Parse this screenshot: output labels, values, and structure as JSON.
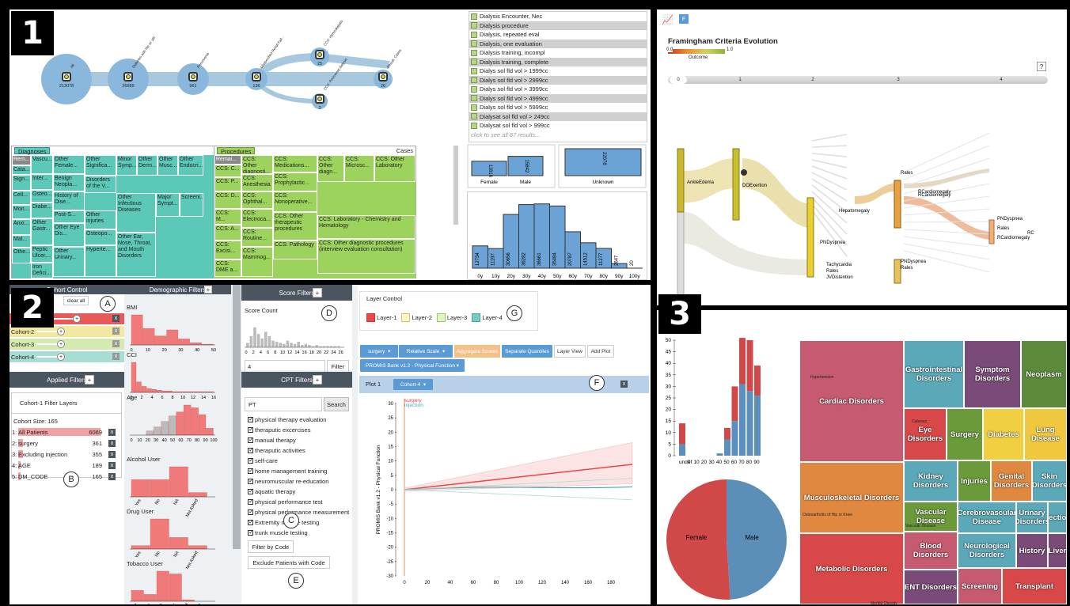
{
  "panel_numbers": [
    "1",
    "2",
    "3"
  ],
  "p1": {
    "flow_nodes": [
      {
        "count": "213078",
        "label": "All"
      },
      {
        "count": "26689",
        "label": "Diabetes with hte w/ oth"
      },
      {
        "count": "961",
        "label": "Pneumonia"
      },
      {
        "count": "136",
        "label": "Unspecified Renal Fail..."
      },
      {
        "count": "25",
        "label": "CCS: Hemodialysis"
      },
      {
        "count": "2",
        "label": "CCS: Peritoneal dialysis"
      },
      {
        "count": "26",
        "label": "Result: Cases"
      }
    ],
    "list_items": [
      "Dialysis Encounter, Nec",
      "Dialysis procedure",
      "Dialysis, repeated eval",
      "Dialysis, one evaluation",
      "Dialysis training, incompl",
      "Dialysis training, complete",
      "Dialys sol fld vol > 1999cc",
      "Dialys sol fld vol > 2999cc",
      "Dialys sol fld vol > 3999cc",
      "Dialys sol fld vol > 4999cc",
      "Dialys sol fld vol > 5999cc",
      "Dialysat sol fld vol > 249cc",
      "Dialysat sol fld vol > 999cc"
    ],
    "list_more": "click to see all 87 results...",
    "diag_tab": "Diagnoses",
    "cases": "Cases",
    "proc_tab": "Procedures",
    "diag_cells": [
      "Rem...",
      "Vascu...",
      "Other Female...",
      "Other Significa...",
      "Minor Symp...",
      "Other Derm...",
      "Other Musc...",
      "Other Endocri...",
      "Cata...",
      "Inter...",
      "Sign...",
      "Osteo...",
      "Benign Neopla...",
      "Disorders of the V...",
      "Cell...",
      "History of Dise...",
      "Mon...",
      "Diabe...",
      "Post-S...",
      "Other Infectious Diseases",
      "Major Sympt...",
      "Screeni...",
      "Anxi...",
      "Other injuries",
      "Osteopo...",
      "Mal...",
      "Other Gastr...",
      "Other Eye Dis...",
      "Hyperte...",
      "Other Ear, Nose, Throat, and Mouth Disorders",
      "Othe...",
      "Peptic Ulcer,...",
      "Other Urinary...",
      "Iron Defici..."
    ],
    "proc_cells": [
      "Remai...",
      "CCS: Other diagnosti...",
      "CCS: Medications...",
      "CCS: Other diagn...",
      "CCS: Microsc...",
      "CCS: Other Laboratory",
      "CCS: C...",
      "CCS: Anesthesia",
      "CCS: Prophylactic...",
      "CCS: P...",
      "CCS: Ophthal...",
      "CCS: Nonoperative...",
      "CCS: D...",
      "CCS: M...",
      "CCS: Electroca...",
      "CCS: Other therapeutic procedures",
      "CCS: Laboratory - Chemistry and Hematology",
      "CCS: A...",
      "CCS: Routine...",
      "CCS: Excisi...",
      "CCS: Pathology",
      "CCS: Other diagnostic procedures (interview evaluation consultation)",
      "CCS: DME a...",
      "CCS: Mammog..."
    ],
    "gender_bars": {
      "values": [
        11816,
        15842,
        22078
      ],
      "labels": [
        "Female",
        "Male",
        "Unknown"
      ]
    },
    "age_hist": {
      "categories": [
        "0y",
        "10y",
        "20y",
        "30y",
        "40y",
        "50y",
        "60y",
        "70y",
        "80y",
        "90y",
        "100y"
      ],
      "values": [
        12734,
        11197,
        30656,
        36282,
        36661,
        35484,
        20787,
        14512,
        11277,
        2647,
        20
      ]
    }
  },
  "p2": {
    "cohort_control": "Cohort Control",
    "clear_all": "clear all",
    "cohorts": [
      "Cohort-1",
      "Cohort-2",
      "Cohort-3",
      "Cohort-4"
    ],
    "cohort_colors": [
      "#e85a5a",
      "#f3e8a0",
      "#d4eab0",
      "#a8ddd6"
    ],
    "applied_filters": "Applied Filters",
    "filter_layers": "Cohort-1 Filter Layers",
    "cohort_size": "Cohort Size: 165",
    "layers": [
      {
        "n": "1:",
        "name": "All Patients",
        "count": "6069"
      },
      {
        "n": "2:",
        "name": "surgery",
        "count": "361"
      },
      {
        "n": "3:",
        "name": "Excluding injection",
        "count": "355"
      },
      {
        "n": "4:",
        "name": "AGE",
        "count": "189"
      },
      {
        "n": "5:",
        "name": "DM_CODE",
        "count": "165"
      }
    ],
    "demo_filters": "Demographic Filters",
    "bmi": {
      "title": "BMI",
      "ticks": [
        "0",
        "10",
        "20",
        "30",
        "40",
        "50"
      ],
      "values": [
        40,
        22,
        12,
        20,
        8,
        3,
        1
      ]
    },
    "cci": {
      "title": "CCI",
      "ticks": [
        "0",
        "2",
        "4",
        "6",
        "8",
        "10",
        "12",
        "14",
        "16"
      ],
      "values": [
        40,
        14,
        8,
        5,
        4,
        3,
        2,
        2,
        1,
        1,
        1,
        1,
        1,
        1,
        1,
        1
      ]
    },
    "age": {
      "title": "Age",
      "ticks": [
        "0",
        "10",
        "20",
        "30",
        "40",
        "50",
        "60",
        "70",
        "80",
        "90",
        "100"
      ],
      "values": [
        0,
        0,
        3,
        6,
        10,
        14,
        17,
        22,
        20,
        15,
        5
      ],
      "red_from": 6
    },
    "alcohol": {
      "title": "Alcohol User",
      "cats": [
        "Yes",
        "No",
        "NA",
        "Not Asked"
      ],
      "values": [
        16,
        16,
        28,
        4
      ]
    },
    "drug": {
      "title": "Drug User",
      "cats": [
        "Yes",
        "No",
        "NA",
        "Not Asked"
      ],
      "values": [
        3,
        26,
        10,
        3
      ]
    },
    "tobacco": {
      "title": "Tobacco User",
      "cats": [
        "Quit",
        "Yes",
        "NA",
        "Never",
        "Not Asked",
        "Passive"
      ],
      "values": [
        8,
        5,
        22,
        20,
        1,
        0
      ]
    },
    "score_filters": "Score Filters",
    "score_count": "Score Count",
    "score_ticks": [
      "0",
      "2",
      "4",
      "6",
      "8",
      "10",
      "12",
      "14",
      "16",
      "18",
      "20",
      "22",
      "24",
      "26"
    ],
    "score_value": "4",
    "filter_btn": "Filter",
    "cpt_filters": "CPT Filters",
    "cpt_search": "PT",
    "search_btn": "Search",
    "cpt_items": [
      "physical therapy evaluation",
      "theraputic excercises",
      "manual therapy",
      "theraputic activities",
      "self-care",
      "home management training",
      "neuromuscular re-education",
      "aquatic therapy",
      "physical performance test",
      "physical performance measurement",
      "Extremity muscle testing",
      "trunk muscle testing"
    ],
    "filter_by_code": "Filter by Code",
    "exclude_btn": "Exclude Patients with Code",
    "layer_control": "Layer Control",
    "layer_names": [
      "Layer-1",
      "Layer-2",
      "Layer-3",
      "Layer-4"
    ],
    "tb": {
      "surgery": "surgery",
      "rel_scale": "Relative Scale",
      "agg": "Aggregate Scores",
      "sep": "Separate Quantiles",
      "layer_view": "Layer View",
      "add_plot": "Add Plot",
      "promis": "PROMIS Bank v1.2 - Physical Function"
    },
    "plot_title": "Plot 1",
    "plot_cohort": "Cohort-4",
    "plot_ylabel": "PROMIS Bank v1.2 - Physical Function",
    "plot_yticks": [
      "30",
      "25",
      "20",
      "15",
      "10",
      "5",
      "0",
      "-5",
      "-10",
      "-15",
      "-20",
      "-25",
      "-30"
    ],
    "plot_xticks": [
      "0",
      "20",
      "40",
      "60",
      "80",
      "100",
      "120",
      "140",
      "160",
      "180"
    ],
    "surgery_lbl": "surgery",
    "injection_lbl": "injection",
    "letters": [
      "A",
      "B",
      "C",
      "D",
      "E",
      "F",
      "G"
    ]
  },
  "p3": {
    "title": "Framingham Criteria Evolution",
    "outcome": "Outcome",
    "outcome_min": "0.0",
    "outcome_max": "1.0",
    "steps": [
      "0",
      "1",
      "2",
      "3",
      "4"
    ],
    "nodes": [
      "AnkleEdema",
      "DOExertion",
      "PNDyspnea",
      "Hepatomegaly",
      "RCardiomegaly",
      "Tachycardia",
      "Rales",
      "JVDistention",
      "Rales",
      "RCardiomegaly",
      "PNDyspnea",
      "Rales",
      "RCardiomegaly",
      "PNDyspnea",
      "Rales",
      "RC"
    ]
  },
  "p4": {
    "age_ticks": [
      "undef",
      "0",
      "10",
      "20",
      "30",
      "40",
      "50",
      "60",
      "70",
      "80",
      "90"
    ],
    "y_ticks": [
      "50",
      "45",
      "40",
      "35",
      "30",
      "25",
      "20",
      "15",
      "10",
      "5",
      "0"
    ],
    "stack": {
      "blue": [
        5,
        0,
        0,
        0,
        0,
        1,
        7,
        15,
        31,
        28,
        26
      ],
      "red": [
        9,
        0,
        0,
        0,
        0,
        0,
        5,
        15,
        20,
        22,
        13
      ]
    },
    "pie": {
      "labels": [
        "Female",
        "Male"
      ],
      "values": [
        51,
        49
      ]
    },
    "treemap": [
      "Cardiac Disorders",
      "Gastrointestinal Disorders",
      "Symptom Disorders",
      "Neoplasm",
      "Eye Disorders",
      "Surgery",
      "Diabetes",
      "Lung Disease",
      "Musculoskeletal Disorders",
      "Kidney Disorders",
      "Injuries",
      "Genital Disorders",
      "Skin Disorders",
      "Vascular Disease",
      "Cerebrovascular Disease",
      "Urinary Disorders",
      "Infectious",
      "Metabolic Disorders",
      "Blood Disorders",
      "Neurological Disorders",
      "History",
      "Liver",
      "ENT Disorders",
      "Screening",
      "Transplant"
    ],
    "small": [
      "Hypertension",
      "Cataract",
      "Osteoarthritis of Hip or Knee",
      "Morbid Obesity",
      "Vascular Disease"
    ]
  }
}
